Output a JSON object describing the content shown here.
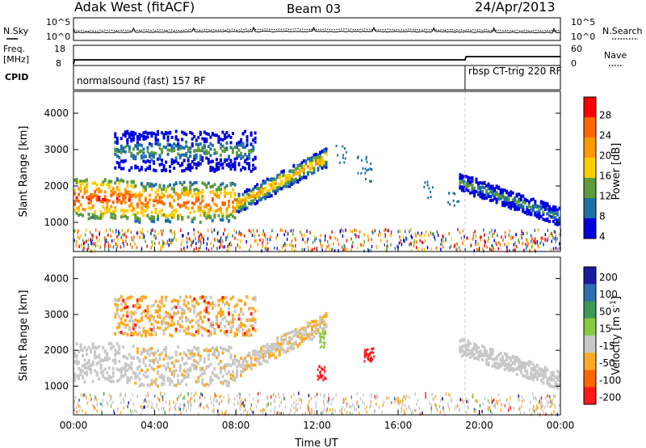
{
  "header": {
    "station": "Adak West (fitACF)",
    "beam": "Beam 03",
    "date": "24/Apr/2013"
  },
  "status_panels": {
    "nsky_label": "N.Sky",
    "nsearch_label": "N.Search",
    "freq_label": "Freq.",
    "freq_unit": "[MHz]",
    "nave_label": "Nave",
    "cpid_label": "CPID",
    "nsky_ticks": [
      "10^5",
      "10^0"
    ],
    "nsearch_ticks": [
      "10^5",
      "10^0"
    ],
    "freq_ticks": [
      "18",
      "8"
    ],
    "nave_ticks": [
      "60",
      "0"
    ],
    "cpid_segments": [
      {
        "start_hour": 0,
        "end_hour": 19.3,
        "label": "normalsound (fast) 157 RF"
      },
      {
        "start_hour": 19.3,
        "end_hour": 24,
        "label": "rbsp CT-trig 220 RF"
      }
    ],
    "freq_series": {
      "hours": [
        0,
        0.05,
        19.3,
        19.35,
        24
      ],
      "mhz": [
        8,
        10.5,
        10.5,
        12.5,
        12.5
      ]
    }
  },
  "chart_data": [
    {
      "type": "heatmap",
      "title": "",
      "xlabel": "",
      "ylabel": "Slant Range [km]",
      "xlim": [
        0,
        24
      ],
      "ylim": [
        200,
        4600
      ],
      "yticks": [
        1000,
        2000,
        3000,
        4000
      ],
      "colorbar": {
        "label": "Power [dB]",
        "ticks": [
          "28",
          "24",
          "20",
          "16",
          "12",
          "8",
          "4"
        ],
        "colors": [
          "#ff0000",
          "#ff6600",
          "#ff9900",
          "#ffcc00",
          "#5e9c3a",
          "#1f6fa8",
          "#0000dd"
        ]
      },
      "echo_bands": [
        {
          "hour_range": [
            0,
            3
          ],
          "range_km": [
            1100,
            2200
          ],
          "peak_db": 28
        },
        {
          "hour_range": [
            3,
            8
          ],
          "range_km": [
            1000,
            2100
          ],
          "peak_db": 26
        },
        {
          "hour_range": [
            8,
            12.5
          ],
          "range_km": [
            1500,
            2800
          ],
          "peak_db": 22
        },
        {
          "hour_range": [
            2,
            9
          ],
          "range_km": [
            2400,
            3500
          ],
          "peak_db": 14
        },
        {
          "hour_range": [
            19,
            24
          ],
          "range_km": [
            900,
            2100
          ],
          "peak_db": 14
        }
      ]
    },
    {
      "type": "heatmap",
      "title": "",
      "xlabel": "Time UT",
      "ylabel": "Slant Range [km]",
      "xlim": [
        0,
        24
      ],
      "ylim": [
        200,
        4600
      ],
      "xticks": [
        "00:00",
        "04:00",
        "08:00",
        "12:00",
        "16:00",
        "20:00",
        "00:00"
      ],
      "yticks": [
        1000,
        2000,
        3000,
        4000
      ],
      "colorbar": {
        "label": "Velocity [m s^-1]",
        "ticks": [
          "200",
          "100",
          "50",
          "15",
          "-15",
          "-50",
          "-100",
          "-200"
        ],
        "colors": [
          "#1a1aa0",
          "#2e6fb0",
          "#3c9a55",
          "#88cc44",
          "#c8c8c8",
          "#ffaa22",
          "#ff6600",
          "#ff1a1a"
        ]
      }
    }
  ]
}
